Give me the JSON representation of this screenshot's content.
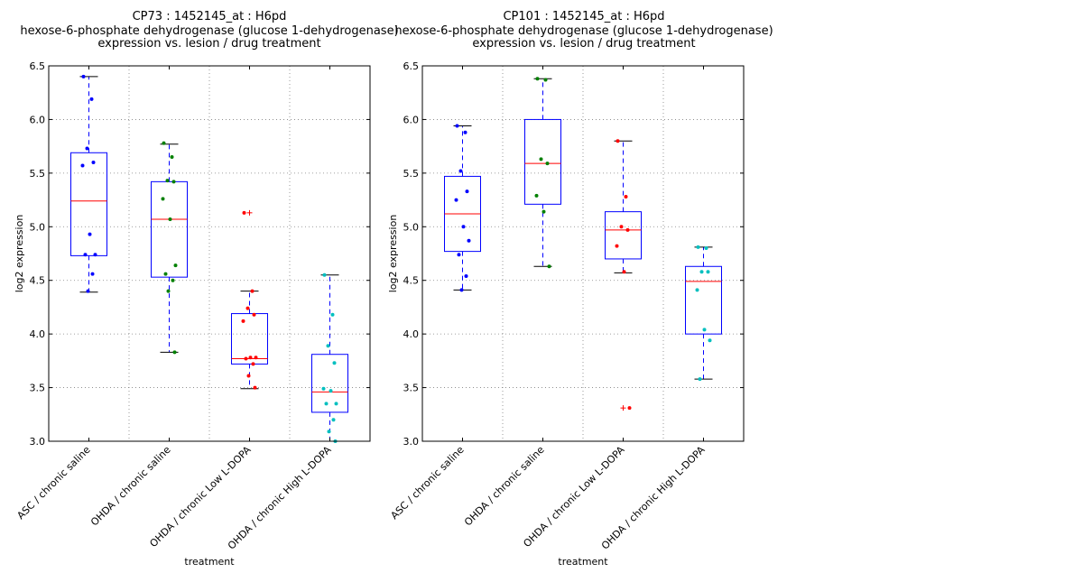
{
  "chart_data": [
    {
      "type": "boxplot",
      "title_lines": [
        "CP73 : 1452145_at : H6pd",
        "hexose-6-phosphate dehydrogenase (glucose 1-dehydrogenase)",
        "expression vs. lesion / drug treatment"
      ],
      "xlabel": "treatment",
      "ylabel": "log2 expression",
      "ylim": [
        3.0,
        6.5
      ],
      "yticks": [
        "3.0",
        "3.5",
        "4.0",
        "4.5",
        "5.0",
        "5.5",
        "6.0",
        "6.5"
      ],
      "grid": true,
      "categories": [
        "ASC / chronic saline",
        "OHDA / chronic saline",
        "OHDA / chronic Low L-DOPA",
        "OHDA / chronic High L-DOPA"
      ],
      "boxes": [
        {
          "q1": 4.73,
          "median": 5.24,
          "q3": 5.69,
          "whisker_low": 4.39,
          "whisker_high": 6.4,
          "outliers": []
        },
        {
          "q1": 4.53,
          "median": 5.07,
          "q3": 5.42,
          "whisker_low": 3.83,
          "whisker_high": 5.77,
          "outliers": []
        },
        {
          "q1": 3.72,
          "median": 3.77,
          "q3": 4.19,
          "whisker_low": 3.49,
          "whisker_high": 4.4,
          "outliers": [
            5.13
          ]
        },
        {
          "q1": 3.27,
          "median": 3.46,
          "q3": 3.81,
          "whisker_low": 3.0,
          "whisker_high": 4.55,
          "outliers": []
        }
      ],
      "points": [
        {
          "color": "#0000ff",
          "values": [
            6.4,
            6.19,
            5.73,
            5.6,
            5.57,
            4.93,
            4.74,
            4.74,
            4.56,
            4.4
          ]
        },
        {
          "color": "#008000",
          "values": [
            5.78,
            5.65,
            5.43,
            5.42,
            5.26,
            5.07,
            4.64,
            4.56,
            4.5,
            4.4,
            3.83
          ]
        },
        {
          "color": "#ff0000",
          "values": [
            5.13,
            4.4,
            4.24,
            4.18,
            4.12,
            3.78,
            3.78,
            3.77,
            3.72,
            3.61,
            3.5
          ]
        },
        {
          "color": "#00bfbf",
          "values": [
            4.55,
            4.18,
            3.89,
            3.73,
            3.49,
            3.47,
            3.35,
            3.35,
            3.2,
            3.09,
            3.0
          ]
        }
      ]
    },
    {
      "type": "boxplot",
      "title_lines": [
        "CP101 : 1452145_at : H6pd",
        "hexose-6-phosphate dehydrogenase (glucose 1-dehydrogenase)",
        "expression vs. lesion / drug treatment"
      ],
      "xlabel": "treatment",
      "ylabel": "log2 expression",
      "ylim": [
        3.0,
        6.5
      ],
      "yticks": [
        "3.0",
        "3.5",
        "4.0",
        "4.5",
        "5.0",
        "5.5",
        "6.0",
        "6.5"
      ],
      "grid": true,
      "categories": [
        "ASC / chronic saline",
        "OHDA / chronic saline",
        "OHDA / chronic Low L-DOPA",
        "OHDA / chronic High L-DOPA"
      ],
      "boxes": [
        {
          "q1": 4.77,
          "median": 5.12,
          "q3": 5.47,
          "whisker_low": 4.41,
          "whisker_high": 5.94,
          "outliers": []
        },
        {
          "q1": 5.21,
          "median": 5.59,
          "q3": 6.0,
          "whisker_low": 4.63,
          "whisker_high": 6.38,
          "outliers": []
        },
        {
          "q1": 4.7,
          "median": 4.97,
          "q3": 5.14,
          "whisker_low": 4.57,
          "whisker_high": 5.8,
          "outliers": [
            3.31
          ]
        },
        {
          "q1": 4.0,
          "median": 4.49,
          "q3": 4.63,
          "whisker_low": 3.58,
          "whisker_high": 4.81,
          "outliers": []
        }
      ],
      "points": [
        {
          "color": "#0000ff",
          "values": [
            5.94,
            5.88,
            5.52,
            5.33,
            5.25,
            5.0,
            4.87,
            4.74,
            4.54,
            4.41
          ]
        },
        {
          "color": "#008000",
          "values": [
            6.38,
            6.37,
            5.63,
            5.59,
            5.29,
            5.14,
            4.63
          ]
        },
        {
          "color": "#ff0000",
          "values": [
            5.8,
            5.28,
            5.0,
            4.97,
            4.82,
            4.58,
            3.31
          ]
        },
        {
          "color": "#00bfbf",
          "values": [
            4.81,
            4.8,
            4.58,
            4.58,
            4.41,
            4.04,
            3.94,
            3.58
          ]
        }
      ]
    }
  ]
}
